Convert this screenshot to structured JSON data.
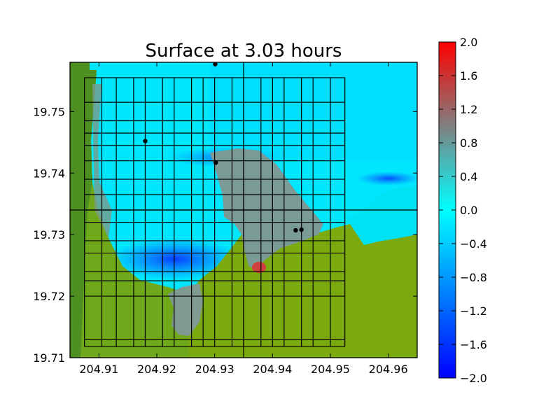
{
  "chart_data": {
    "type": "heatmap",
    "title": "Surface at 3.03 hours",
    "xlabel": "",
    "ylabel": "",
    "xlim": [
      204.905,
      204.965
    ],
    "ylim": [
      19.71,
      19.758
    ],
    "x_ticks": [
      204.91,
      204.92,
      204.93,
      204.94,
      204.95,
      204.96
    ],
    "x_tick_labels": [
      "204.91",
      "204.92",
      "204.93",
      "204.94",
      "204.95",
      "204.96"
    ],
    "y_ticks": [
      19.71,
      19.72,
      19.73,
      19.74,
      19.75
    ],
    "y_tick_labels": [
      "19.71",
      "19.72",
      "19.73",
      "19.74",
      "19.75"
    ],
    "colorbar": {
      "min": -2.0,
      "max": 2.0,
      "ticks": [
        -2.0,
        -1.6,
        -1.2,
        -0.8,
        -0.4,
        0.0,
        0.4,
        0.8,
        1.2,
        1.6,
        2.0
      ],
      "tick_labels": [
        "−2.0",
        "−1.6",
        "−1.2",
        "−0.8",
        "−0.4",
        "0.0",
        "0.4",
        "0.8",
        "1.2",
        "1.6",
        "2.0"
      ],
      "colors": [
        "#0000ff",
        "#00ffff",
        "#808080",
        "#ff0000"
      ]
    },
    "land_color": "#6fa81a",
    "grid_outer": {
      "x": [
        204.9075,
        204.9525
      ],
      "y": [
        19.7118,
        19.7555
      ]
    },
    "grid_lines": {
      "x": [
        204.9075,
        204.9105,
        204.913,
        204.916,
        204.918,
        204.921,
        204.923,
        204.926,
        204.928,
        204.93,
        204.933,
        204.935,
        204.938,
        204.94,
        204.942,
        204.945,
        204.947,
        204.95,
        204.9525
      ],
      "y": [
        19.7118,
        19.713,
        19.72,
        19.7225,
        19.724,
        19.727,
        19.729,
        19.732,
        19.734,
        19.7365,
        19.739,
        19.742,
        19.7445,
        19.7465,
        19.7485,
        19.7515,
        19.7555
      ]
    },
    "points": [
      {
        "x": 204.9301,
        "y": 19.7577
      },
      {
        "x": 204.918,
        "y": 19.7452
      },
      {
        "x": 204.9302,
        "y": 19.7417
      },
      {
        "x": 204.944,
        "y": 19.7307
      },
      {
        "x": 204.945,
        "y": 19.7308
      }
    ]
  }
}
